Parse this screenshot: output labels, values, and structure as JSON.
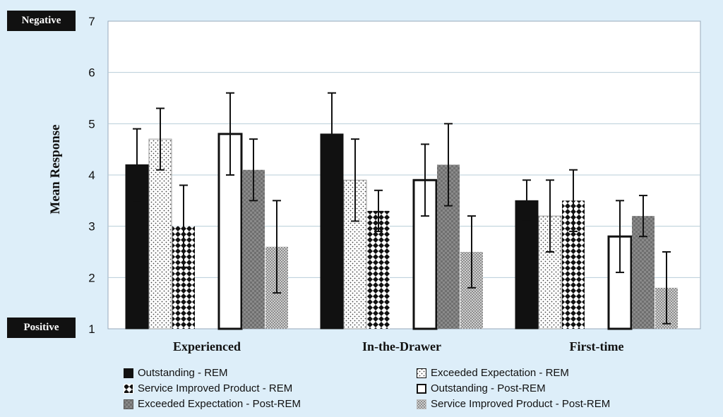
{
  "chart_data": {
    "type": "bar",
    "title": "",
    "xlabel": "",
    "ylabel": "Mean Response",
    "ylim": [
      1,
      7
    ],
    "yticks": [
      "1",
      "2",
      "3",
      "4",
      "5",
      "6",
      "7"
    ],
    "grid": true,
    "legend_position": "bottom",
    "categories": [
      "Experienced",
      "In-the-Drawer",
      "First-time"
    ],
    "series": [
      {
        "name": "Outstanding - REM",
        "pattern": "solid",
        "values": [
          4.2,
          4.8,
          3.5
        ],
        "err_low": [
          3.5,
          4.0,
          3.1
        ],
        "err_high": [
          4.9,
          5.6,
          3.9
        ]
      },
      {
        "name": "Exceeded Expectation - REM",
        "pattern": "dots",
        "values": [
          4.7,
          3.9,
          3.2
        ],
        "err_low": [
          4.1,
          3.1,
          2.5
        ],
        "err_high": [
          5.3,
          4.7,
          3.9
        ]
      },
      {
        "name": "Service Improved Product - REM",
        "pattern": "diamonds",
        "values": [
          3.0,
          3.3,
          3.5
        ],
        "err_low": [
          2.2,
          2.9,
          2.9
        ],
        "err_high": [
          3.8,
          3.7,
          4.1
        ]
      },
      {
        "name": "Outstanding - Post-REM",
        "pattern": "white",
        "values": [
          4.8,
          3.9,
          2.8
        ],
        "err_low": [
          4.0,
          3.2,
          2.1
        ],
        "err_high": [
          5.6,
          4.6,
          3.5
        ]
      },
      {
        "name": "Exceeded Expectation - Post-REM",
        "pattern": "grayhatch",
        "values": [
          4.1,
          4.2,
          3.2
        ],
        "err_low": [
          3.5,
          3.4,
          2.8
        ],
        "err_high": [
          4.7,
          5.0,
          3.6
        ]
      },
      {
        "name": "Service Improved Product - Post-REM",
        "pattern": "lightcheck",
        "values": [
          2.6,
          2.5,
          1.8
        ],
        "err_low": [
          1.7,
          1.8,
          1.1
        ],
        "err_high": [
          3.5,
          3.2,
          2.5
        ]
      }
    ],
    "annotations": {
      "top": "Negative",
      "bottom": "Positive"
    }
  },
  "colors": {
    "background": "#ddeef9",
    "plot": "#ffffff",
    "grid": "#b8cdd8",
    "bar_dark": "#111111"
  }
}
